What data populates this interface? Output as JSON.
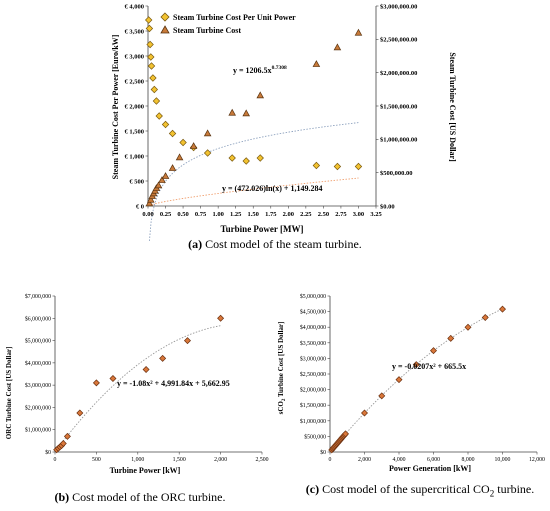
{
  "figures": [
    {
      "caption_label": "(a)",
      "caption_text": " Cost model of the steam turbine."
    },
    {
      "caption_label": "(b)",
      "caption_text": " Cost model of the ORC turbine."
    },
    {
      "caption_label": "(c)",
      "caption_text_1": " Cost model of the supercritical CO",
      "caption_sub": "2",
      "caption_text_2": " turbine."
    }
  ],
  "chart_data": [
    {
      "type": "scatter",
      "title": "",
      "xlabel": "Turbine Power [MW]",
      "ylabel": "Steam Turbine Cost Per Power [Euro/kW]",
      "y2label": "Steam Turbine Cost [US Dollar]",
      "xlim": [
        0,
        3.25
      ],
      "ylim": [
        0,
        4000
      ],
      "y2lim": [
        0,
        3000000
      ],
      "xticks": [
        "0.00",
        "0.25",
        "0.50",
        "0.75",
        "1.00",
        "1.25",
        "1.50",
        "1.75",
        "2.00",
        "2.25",
        "2.50",
        "2.75",
        "3.00",
        "3.25"
      ],
      "yticks": [
        "€ 0",
        "€ 500",
        "€ 1,000",
        "€ 1,500",
        "€ 2,000",
        "€ 2,500",
        "€ 3,000",
        "€ 3,500",
        "€ 4,000"
      ],
      "y2ticks": [
        "$0.00",
        "$500,000.00",
        "$1,000,000.00",
        "$1,500,000.00",
        "$2,000,000.00",
        "$2,500,000.00",
        "$3,000,000.00"
      ],
      "legend": "top-left",
      "grid": false,
      "series": [
        {
          "name": "Steam Turbine Cost Per Unit Power",
          "axis": "left",
          "marker": "diamond",
          "color": "#f2c230",
          "x": [
            0.01,
            0.02,
            0.03,
            0.04,
            0.05,
            0.07,
            0.09,
            0.12,
            0.16,
            0.25,
            0.35,
            0.5,
            0.65,
            0.85,
            1.2,
            1.4,
            1.6,
            2.4,
            2.7,
            3.0
          ],
          "y": [
            3720,
            3550,
            3230,
            2980,
            2800,
            2560,
            2330,
            2100,
            1800,
            1630,
            1450,
            1270,
            1170,
            1060,
            960,
            900,
            960,
            810,
            790,
            790
          ]
        },
        {
          "name": "Steam Turbine Cost",
          "axis": "right",
          "marker": "triangle",
          "color": "#c87a3a",
          "x": [
            0.02,
            0.04,
            0.06,
            0.08,
            0.1,
            0.12,
            0.15,
            0.2,
            0.25,
            0.35,
            0.45,
            0.65,
            0.85,
            1.2,
            1.4,
            1.6,
            2.4,
            2.7,
            3.0
          ],
          "y": [
            40000,
            95000,
            150000,
            190000,
            230000,
            270000,
            310000,
            390000,
            450000,
            570000,
            730000,
            900000,
            1090000,
            1400000,
            1390000,
            1660000,
            2130000,
            2380000,
            2600000
          ]
        }
      ],
      "annotations": [
        "y = 1206.5x",
        "0.7308",
        "y = (472.026)ln(x) + 1,149.284"
      ]
    },
    {
      "type": "scatter",
      "title": "",
      "xlabel": "Turbine Power [kW]",
      "ylabel": "ORC Turbine Cost [US Dollar]",
      "xlim": [
        0,
        2500
      ],
      "ylim": [
        0,
        7000000
      ],
      "xticks": [
        "0",
        "500",
        "1,000",
        "1,500",
        "2,000",
        "2,500"
      ],
      "yticks": [
        "$0",
        "$1,000,000",
        "$2,000,000",
        "$3,000,000",
        "$4,000,000",
        "$5,000,000",
        "$6,000,000",
        "$7,000,000"
      ],
      "grid": false,
      "series": [
        {
          "marker": "diamond",
          "color": "#d9773a",
          "x": [
            20,
            40,
            60,
            80,
            100,
            150,
            300,
            500,
            700,
            1100,
            1300,
            1600,
            2000
          ],
          "y": [
            100000,
            170000,
            230000,
            290000,
            380000,
            700000,
            1750000,
            3100000,
            3300000,
            3700000,
            4200000,
            5000000,
            6000000
          ]
        }
      ],
      "annotations": [
        "y = -1.08x² + 4,991.84x + 5,662.95"
      ]
    },
    {
      "type": "scatter",
      "title": "",
      "xlabel": "Power Generation [kW]",
      "ylabel_1": "sCO",
      "ylabel_sub": "2",
      "ylabel_2": " Turbine Cost [US Dollar]",
      "xlim": [
        0,
        12000
      ],
      "ylim": [
        0,
        5000000
      ],
      "xticks": [
        "0",
        "2,000",
        "4,000",
        "6,000",
        "8,000",
        "10,000",
        "12,000"
      ],
      "yticks": [
        "$0",
        "$500,000",
        "$1,000,000",
        "$1,500,000",
        "$2,000,000",
        "$2,500,000",
        "$3,000,000",
        "$3,500,000",
        "$4,000,000",
        "$4,500,000",
        "$5,000,000"
      ],
      "grid": false,
      "series": [
        {
          "marker": "diamond",
          "color": "#d9773a",
          "x": [
            100,
            150,
            200,
            250,
            300,
            350,
            400,
            450,
            500,
            550,
            600,
            650,
            700,
            750,
            800,
            850,
            900,
            2000,
            3000,
            4000,
            5000,
            6000,
            7000,
            8000,
            9000,
            10000
          ],
          "y": [
            66000,
            99000,
            132000,
            165000,
            197000,
            230000,
            262000,
            294000,
            326000,
            358000,
            390000,
            422000,
            455000,
            487000,
            518000,
            550000,
            582000,
            1250000,
            1800000,
            2320000,
            2800000,
            3250000,
            3640000,
            4000000,
            4310000,
            4580000
          ]
        }
      ],
      "annotations": [
        "y = -0.0207x² + 665.5x"
      ]
    }
  ]
}
